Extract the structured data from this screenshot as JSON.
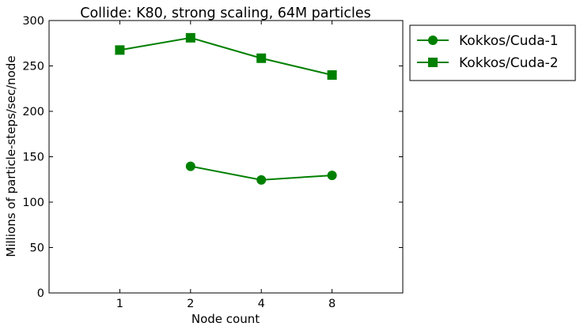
{
  "chart_data": {
    "type": "line",
    "title": "Collide: K80, strong scaling, 64M particles",
    "xlabel": "Node count",
    "ylabel": "Millions of particle-steps/sec/node",
    "categories": [
      "1",
      "2",
      "4",
      "8"
    ],
    "x_range": [
      0,
      5
    ],
    "ylim": [
      0,
      300
    ],
    "y_ticks": [
      0,
      50,
      100,
      150,
      200,
      250,
      300
    ],
    "grid": false,
    "legend_position": "outside-right-top",
    "series": [
      {
        "name": "Kokkos/Cuda-1",
        "marker": "circle",
        "color": "#008000",
        "x": [
          "2",
          "4",
          "8"
        ],
        "values": [
          139.5,
          124.5,
          129.5
        ]
      },
      {
        "name": "Kokkos/Cuda-2",
        "marker": "square",
        "color": "#008000",
        "x": [
          "1",
          "2",
          "4",
          "8"
        ],
        "values": [
          267.5,
          281,
          258.5,
          240
        ]
      }
    ]
  }
}
